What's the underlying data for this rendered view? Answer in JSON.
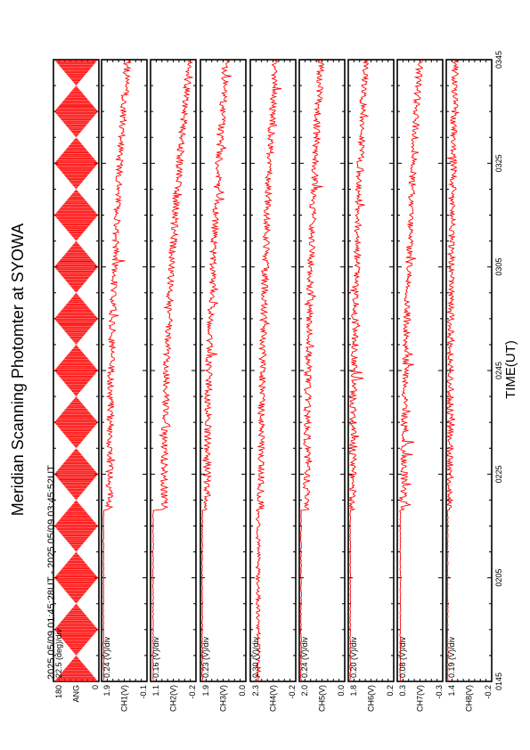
{
  "title": "Meridian Scanning Photomter at SYOWA",
  "time_range_label": "2025 05/09 01:45:28UT - 2025 05/09 03:45:52UT",
  "xlabel": "TIME(UT)",
  "colors": {
    "trace": "#ff0000",
    "axis": "#000000",
    "background": "#ffffff"
  },
  "chart_data": {
    "type": "line",
    "x_ticks": [
      "0145",
      "0205",
      "0225",
      "0245",
      "0305",
      "0325",
      "0345"
    ],
    "x_range": [
      "0145",
      "0345"
    ],
    "data_start": "0218",
    "panels": [
      {
        "scale_label": "22.5 (deg)/div",
        "ylabel": "ANG",
        "ytick_top": "180",
        "ytick_bottom": "0",
        "ylim": [
          0,
          180
        ],
        "kind": "scan_angle"
      },
      {
        "scale_label": "0.24 (V)/div",
        "ylabel": "CH1(V)",
        "ytick_top": "1.9",
        "ytick_bottom": "-0.1",
        "ylim": [
          -0.1,
          1.9
        ],
        "quiet_level": -0.05,
        "active_start": 0.22,
        "active_end": 1.05
      },
      {
        "scale_label": "0.16 (V)/div",
        "ylabel": "CH2(V)",
        "ytick_top": "1.1",
        "ytick_bottom": "-0.2",
        "ylim": [
          -0.2,
          1.1
        ],
        "quiet_level": -0.15,
        "active_start": 0.18,
        "active_end": 0.95
      },
      {
        "scale_label": "0.23 (V)/div",
        "ylabel": "CH3(V)",
        "ytick_top": "1.9",
        "ytick_bottom": "0.0",
        "ylim": [
          0.0,
          1.9
        ],
        "quiet_level": 0.04,
        "active_start": 0.25,
        "active_end": 1.1
      },
      {
        "scale_label": "0.30 (V)/div",
        "ylabel": "CH4(V)",
        "ytick_top": "2.3",
        "ytick_bottom": "-0.2",
        "ylim": [
          -0.2,
          2.3
        ],
        "quiet_level": 0.2,
        "active_start": 0.35,
        "active_end": 1.2
      },
      {
        "scale_label": "0.24 (V)/div",
        "ylabel": "CH5(V)",
        "ytick_top": "2.0",
        "ytick_bottom": "0.0",
        "ylim": [
          0.0,
          2.0
        ],
        "quiet_level": 0.04,
        "active_start": 0.3,
        "active_end": 0.95
      },
      {
        "scale_label": "0.20 (V)/div",
        "ylabel": "CH6(V)",
        "ytick_top": "1.8",
        "ytick_bottom": "0.2",
        "ylim": [
          0.2,
          1.8
        ],
        "quiet_level": 0.24,
        "active_start": 0.33,
        "active_end": 0.8
      },
      {
        "scale_label": "0.08 (V)/div",
        "ylabel": "CH7(V)",
        "ytick_top": "0.3",
        "ytick_bottom": "-0.3",
        "ylim": [
          -0.3,
          0.3
        ],
        "quiet_level": -0.27,
        "active_start": -0.22,
        "active_end": 0.0
      },
      {
        "scale_label": "0.19 (V)/div",
        "ylabel": "CH8(V)",
        "ytick_top": "1.4",
        "ytick_bottom": "-0.2",
        "ylim": [
          -0.2,
          1.4
        ],
        "quiet_level": -0.18,
        "active_start": -0.1,
        "active_end": 0.1
      }
    ],
    "grid": false,
    "legend": "none"
  }
}
